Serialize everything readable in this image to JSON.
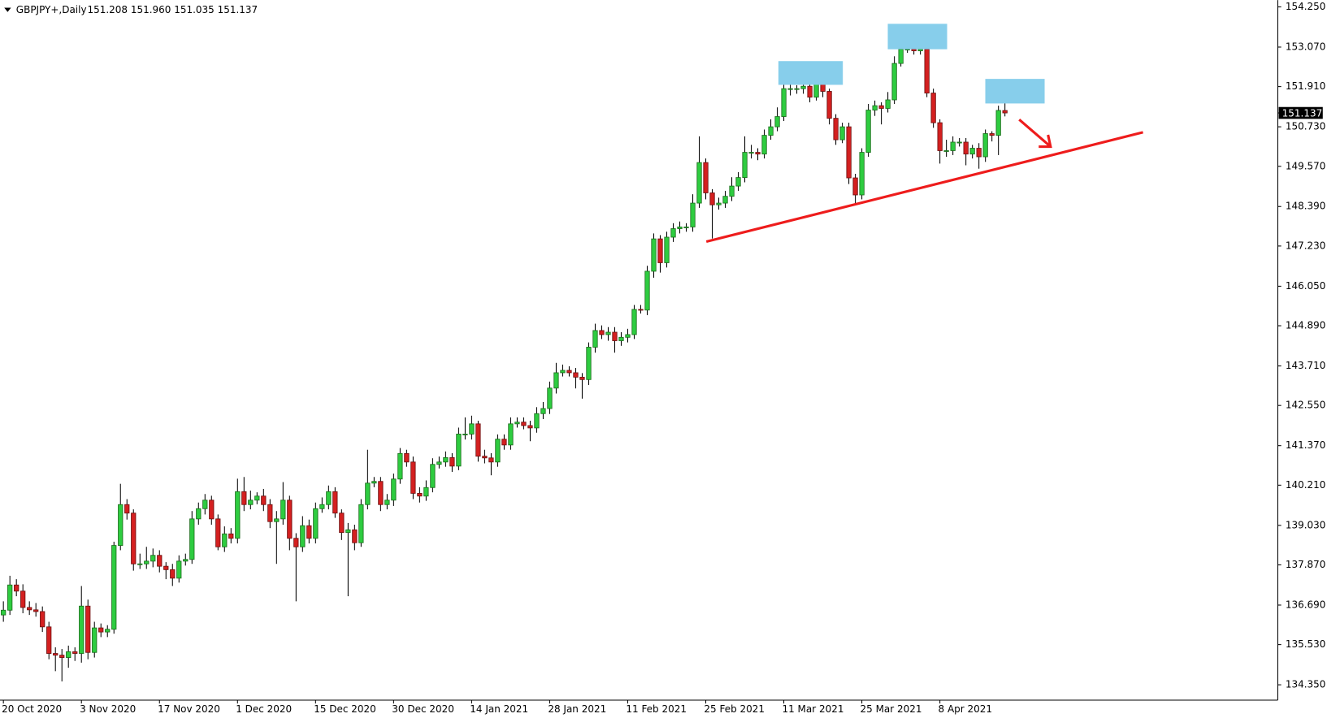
{
  "chart_data": {
    "type": "candlestick",
    "title": "GBPJPY+,Daily",
    "ohlc_text": "151.208 151.960 151.035 151.137",
    "last_price": {
      "value": 151.137,
      "label": "151.137"
    },
    "up_color": "#2ecc40",
    "down_color": "#d42020",
    "ylim": [
      133.9,
      154.4
    ],
    "yticks": [
      {
        "value": 154.25,
        "label": "154.250"
      },
      {
        "value": 153.07,
        "label": "153.070"
      },
      {
        "value": 151.91,
        "label": "151.910"
      },
      {
        "value": 150.73,
        "label": "150.730"
      },
      {
        "value": 149.57,
        "label": "149.570"
      },
      {
        "value": 148.39,
        "label": "148.390"
      },
      {
        "value": 147.23,
        "label": "147.230"
      },
      {
        "value": 146.05,
        "label": "146.050"
      },
      {
        "value": 144.89,
        "label": "144.890"
      },
      {
        "value": 143.71,
        "label": "143.710"
      },
      {
        "value": 142.55,
        "label": "142.550"
      },
      {
        "value": 141.37,
        "label": "141.370"
      },
      {
        "value": 140.21,
        "label": "140.210"
      },
      {
        "value": 139.03,
        "label": "139.030"
      },
      {
        "value": 137.87,
        "label": "137.870"
      },
      {
        "value": 136.69,
        "label": "136.690"
      },
      {
        "value": 135.53,
        "label": "135.530"
      },
      {
        "value": 134.35,
        "label": "134.350"
      }
    ],
    "categories": [
      "20 Oct 2020",
      null,
      null,
      null,
      null,
      null,
      null,
      null,
      null,
      null,
      null,
      null,
      "3 Nov 2020",
      null,
      null,
      null,
      null,
      null,
      null,
      null,
      null,
      null,
      null,
      null,
      "17 Nov 2020",
      null,
      null,
      null,
      null,
      null,
      null,
      null,
      null,
      null,
      null,
      null,
      "1 Dec 2020",
      null,
      null,
      null,
      null,
      null,
      null,
      null,
      null,
      null,
      null,
      null,
      "15 Dec 2020",
      null,
      null,
      null,
      null,
      null,
      null,
      null,
      null,
      null,
      null,
      null,
      "30 Dec 2020",
      null,
      null,
      null,
      null,
      null,
      null,
      null,
      null,
      null,
      null,
      null,
      "14 Jan 2021",
      null,
      null,
      null,
      null,
      null,
      null,
      null,
      null,
      null,
      null,
      null,
      "28 Jan 2021",
      null,
      null,
      null,
      null,
      null,
      null,
      null,
      null,
      null,
      null,
      null,
      "11 Feb 2021",
      null,
      null,
      null,
      null,
      null,
      null,
      null,
      null,
      null,
      null,
      null,
      "25 Feb 2021",
      null,
      null,
      null,
      null,
      null,
      null,
      null,
      null,
      null,
      null,
      null,
      "11 Mar 2021",
      null,
      null,
      null,
      null,
      null,
      null,
      null,
      null,
      null,
      null,
      null,
      "25 Mar 2021",
      null,
      null,
      null,
      null,
      null,
      null,
      null,
      null,
      null,
      null,
      null,
      "8 Apr 2021",
      null,
      null,
      null,
      null,
      null,
      null,
      null,
      null,
      null,
      null
    ],
    "open": [
      136.4,
      136.54,
      137.28,
      137.1,
      136.62,
      136.55,
      136.5,
      136.05,
      135.27,
      135.22,
      135.15,
      135.32,
      135.27,
      136.66,
      135.3,
      136.02,
      135.9,
      135.98,
      138.44,
      139.64,
      139.39,
      137.9,
      137.9,
      137.98,
      138.15,
      137.83,
      137.73,
      137.48,
      137.98,
      138.03,
      139.22,
      139.52,
      139.77,
      139.22,
      138.4,
      138.78,
      138.65,
      140.02,
      139.64,
      139.77,
      139.89,
      139.64,
      139.14,
      139.22,
      139.77,
      138.65,
      138.4,
      139.02,
      138.65,
      139.52,
      139.64,
      140.02,
      139.39,
      138.82,
      138.9,
      138.52,
      139.64,
      140.27,
      140.32,
      139.64,
      139.77,
      140.39,
      141.14,
      140.89,
      139.97,
      139.89,
      140.14,
      140.82,
      140.89,
      141.02,
      140.77,
      141.71,
      141.71,
      142.01,
      141.06,
      141.01,
      140.89,
      141.56,
      141.39,
      142.01,
      142.06,
      141.96,
      141.89,
      142.31,
      142.46,
      143.06,
      143.51,
      143.58,
      143.51,
      143.38,
      143.31,
      144.26,
      144.75,
      144.63,
      144.7,
      144.45,
      144.55,
      144.63,
      145.37,
      145.35,
      146.49,
      147.44,
      146.74,
      147.49,
      147.74,
      147.79,
      147.79,
      148.49,
      149.68,
      148.79,
      148.44,
      148.49,
      148.69,
      148.99,
      149.24,
      149.98,
      149.98,
      149.93,
      150.48,
      150.73,
      151.03,
      151.85,
      151.85,
      151.85,
      151.92,
      151.6,
      152.02,
      151.77,
      150.98,
      150.35,
      150.73,
      149.23,
      148.73,
      149.98,
      151.22,
      151.35,
      151.27,
      151.52,
      152.59,
      153.01,
      153.01,
      152.96,
      153.01,
      151.72,
      150.85,
      150.03,
      150.03,
      150.28,
      150.28,
      149.93,
      150.1,
      149.85,
      150.53,
      150.48,
      151.208
    ],
    "high": [
      136.8,
      137.55,
      137.45,
      137.3,
      136.8,
      136.75,
      136.65,
      136.2,
      135.45,
      135.4,
      135.5,
      135.45,
      137.25,
      136.85,
      136.2,
      136.15,
      136.1,
      138.55,
      140.25,
      139.8,
      139.5,
      138.2,
      138.4,
      138.35,
      138.3,
      137.95,
      137.9,
      138.15,
      138.2,
      139.45,
      139.7,
      139.95,
      139.9,
      139.35,
      139.0,
      138.95,
      140.4,
      140.45,
      140.05,
      140.0,
      140.1,
      139.8,
      139.45,
      140.3,
      139.9,
      138.8,
      139.3,
      139.2,
      139.7,
      139.85,
      140.2,
      140.15,
      139.5,
      139.1,
      139.05,
      139.8,
      141.25,
      140.45,
      140.45,
      139.95,
      140.55,
      141.3,
      141.25,
      141.05,
      140.15,
      140.35,
      141.0,
      141.05,
      141.2,
      141.15,
      141.9,
      142.2,
      142.25,
      142.1,
      141.25,
      141.15,
      141.7,
      141.7,
      142.2,
      142.2,
      142.2,
      142.1,
      142.5,
      142.65,
      143.25,
      143.8,
      143.75,
      143.7,
      143.65,
      143.5,
      144.4,
      144.95,
      144.9,
      144.85,
      144.85,
      144.7,
      144.8,
      145.5,
      145.5,
      146.65,
      147.6,
      147.55,
      147.65,
      147.9,
      147.95,
      147.9,
      148.75,
      150.45,
      149.8,
      148.9,
      148.65,
      148.85,
      149.25,
      149.4,
      150.45,
      150.2,
      150.1,
      150.65,
      150.95,
      151.3,
      152.0,
      152.2,
      151.95,
      152.05,
      152.0,
      152.15,
      152.1,
      151.85,
      151.1,
      150.85,
      150.85,
      149.35,
      150.1,
      151.4,
      151.5,
      151.45,
      151.75,
      152.8,
      153.3,
      153.35,
      153.2,
      153.4,
      153.1,
      151.85,
      150.95,
      150.35,
      150.45,
      150.4,
      150.4,
      150.2,
      150.25,
      150.65,
      150.6,
      151.35,
      151.96
    ],
    "low": [
      136.2,
      136.4,
      136.95,
      136.45,
      136.4,
      136.35,
      135.9,
      135.1,
      134.75,
      134.45,
      134.85,
      135.05,
      135.0,
      135.1,
      135.15,
      135.75,
      135.75,
      135.85,
      138.3,
      139.2,
      137.7,
      137.75,
      137.75,
      137.8,
      137.65,
      137.45,
      137.25,
      137.35,
      137.85,
      137.9,
      139.05,
      139.35,
      139.05,
      138.3,
      138.25,
      138.5,
      138.5,
      139.45,
      139.5,
      139.65,
      139.45,
      138.95,
      137.9,
      139.05,
      138.3,
      136.8,
      138.25,
      138.5,
      138.5,
      139.4,
      139.5,
      139.25,
      138.6,
      136.95,
      138.3,
      138.4,
      139.5,
      140.15,
      139.45,
      139.5,
      139.6,
      140.25,
      140.75,
      139.8,
      139.7,
      139.75,
      140.0,
      140.7,
      140.75,
      140.6,
      140.65,
      141.55,
      141.55,
      140.9,
      140.85,
      140.5,
      140.75,
      141.25,
      141.25,
      141.9,
      141.85,
      141.5,
      141.75,
      142.15,
      142.3,
      142.9,
      143.4,
      143.4,
      143.05,
      142.75,
      143.15,
      144.1,
      144.5,
      144.45,
      144.1,
      144.3,
      144.4,
      144.5,
      145.25,
      145.2,
      146.3,
      146.45,
      146.6,
      147.35,
      147.6,
      147.65,
      147.65,
      148.35,
      148.6,
      147.45,
      148.3,
      148.35,
      148.55,
      148.85,
      149.1,
      149.8,
      149.75,
      149.8,
      150.35,
      150.6,
      150.9,
      151.65,
      151.7,
      151.7,
      151.45,
      151.5,
      151.6,
      150.8,
      150.2,
      150.25,
      149.05,
      148.45,
      148.6,
      149.85,
      151.05,
      150.8,
      151.15,
      151.4,
      152.5,
      152.9,
      152.85,
      152.85,
      151.6,
      150.7,
      149.65,
      149.85,
      149.9,
      150.15,
      149.6,
      149.8,
      149.5,
      149.7,
      150.3,
      149.9,
      151.035
    ],
    "close": [
      136.54,
      137.28,
      137.1,
      136.62,
      136.55,
      136.5,
      136.05,
      135.27,
      135.22,
      135.15,
      135.32,
      135.27,
      136.66,
      135.3,
      136.02,
      135.9,
      135.98,
      138.44,
      139.64,
      139.39,
      137.9,
      137.9,
      137.98,
      138.15,
      137.83,
      137.73,
      137.48,
      137.98,
      138.03,
      139.22,
      139.52,
      139.77,
      139.22,
      138.4,
      138.78,
      138.65,
      140.02,
      139.64,
      139.77,
      139.89,
      139.64,
      139.14,
      139.22,
      139.77,
      138.65,
      138.4,
      139.02,
      138.65,
      139.52,
      139.64,
      140.02,
      139.39,
      138.82,
      138.9,
      138.52,
      139.64,
      140.27,
      140.32,
      139.64,
      139.77,
      140.39,
      141.14,
      140.89,
      139.97,
      139.89,
      140.14,
      140.82,
      140.89,
      141.02,
      140.77,
      141.71,
      141.71,
      142.01,
      141.06,
      141.01,
      140.89,
      141.56,
      141.39,
      142.01,
      142.06,
      141.96,
      141.89,
      142.31,
      142.46,
      143.06,
      143.51,
      143.58,
      143.51,
      143.38,
      143.31,
      144.26,
      144.75,
      144.63,
      144.7,
      144.45,
      144.55,
      144.63,
      145.37,
      145.35,
      146.49,
      147.44,
      146.74,
      147.49,
      147.74,
      147.79,
      147.79,
      148.49,
      149.68,
      148.79,
      148.44,
      148.49,
      148.69,
      148.99,
      149.24,
      149.98,
      149.98,
      149.93,
      150.48,
      150.73,
      151.03,
      151.85,
      151.85,
      151.85,
      151.92,
      151.6,
      152.02,
      151.77,
      150.98,
      150.35,
      150.73,
      149.23,
      148.73,
      149.98,
      151.22,
      151.35,
      151.27,
      151.52,
      152.59,
      153.01,
      153.01,
      152.96,
      153.01,
      151.72,
      150.85,
      150.03,
      150.03,
      150.28,
      150.28,
      149.93,
      150.1,
      149.85,
      150.53,
      150.48,
      151.21,
      151.137
    ]
  }
}
